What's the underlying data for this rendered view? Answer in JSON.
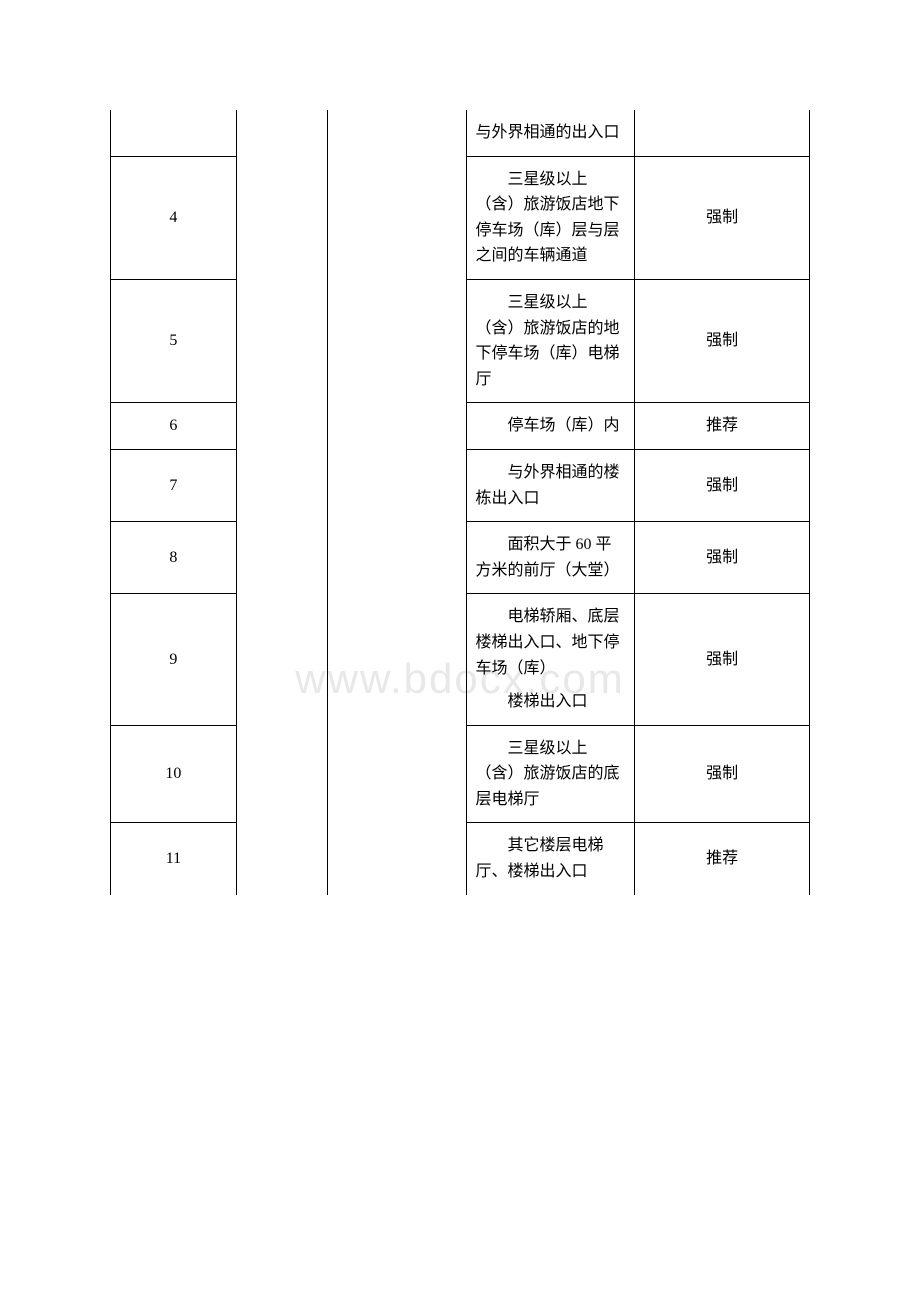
{
  "watermark": "www.bdocx.com",
  "table": {
    "columns": {
      "col1_width": "18%",
      "col2_width": "13%",
      "col3_width": "20%",
      "col4_width": "24%",
      "col5_width": "25%"
    },
    "rows": [
      {
        "num": "",
        "desc": "与外界相通的出入口",
        "type": "",
        "first_partial": true
      },
      {
        "num": "4",
        "desc": "　　三星级以上（含）旅游饭店地下停车场（库）层与层之间的车辆通道",
        "type": "强制"
      },
      {
        "num": "5",
        "desc": "　　三星级以上（含）旅游饭店的地下停车场（库）电梯厅",
        "type": "强制"
      },
      {
        "num": "6",
        "desc": "　　停车场（库）内",
        "type": "推荐"
      },
      {
        "num": "7",
        "desc": "　　与外界相通的楼栋出入口",
        "type": "强制"
      },
      {
        "num": "8",
        "desc": "　　面积大于 60 平方米的前厅（大堂）",
        "type": "强制"
      },
      {
        "num": "9",
        "desc1": "　　电梯轿厢、底层楼梯出入口、地下停车场（库）",
        "desc2": "　　楼梯出入口",
        "type": "强制",
        "multi_para": true
      },
      {
        "num": "10",
        "desc": "　　三星级以上（含）旅游饭店的底层电梯厅",
        "type": "强制"
      },
      {
        "num": "11",
        "desc": "　　其它楼层电梯厅、楼梯出入口",
        "type": "推荐",
        "last_partial": true
      }
    ]
  },
  "styling": {
    "font_family": "SimSun",
    "font_size": 16,
    "line_height": 1.6,
    "border_color": "#000000",
    "text_color": "#000000",
    "background_color": "#ffffff",
    "watermark_color": "#e8e8e8",
    "watermark_fontsize": 42
  }
}
